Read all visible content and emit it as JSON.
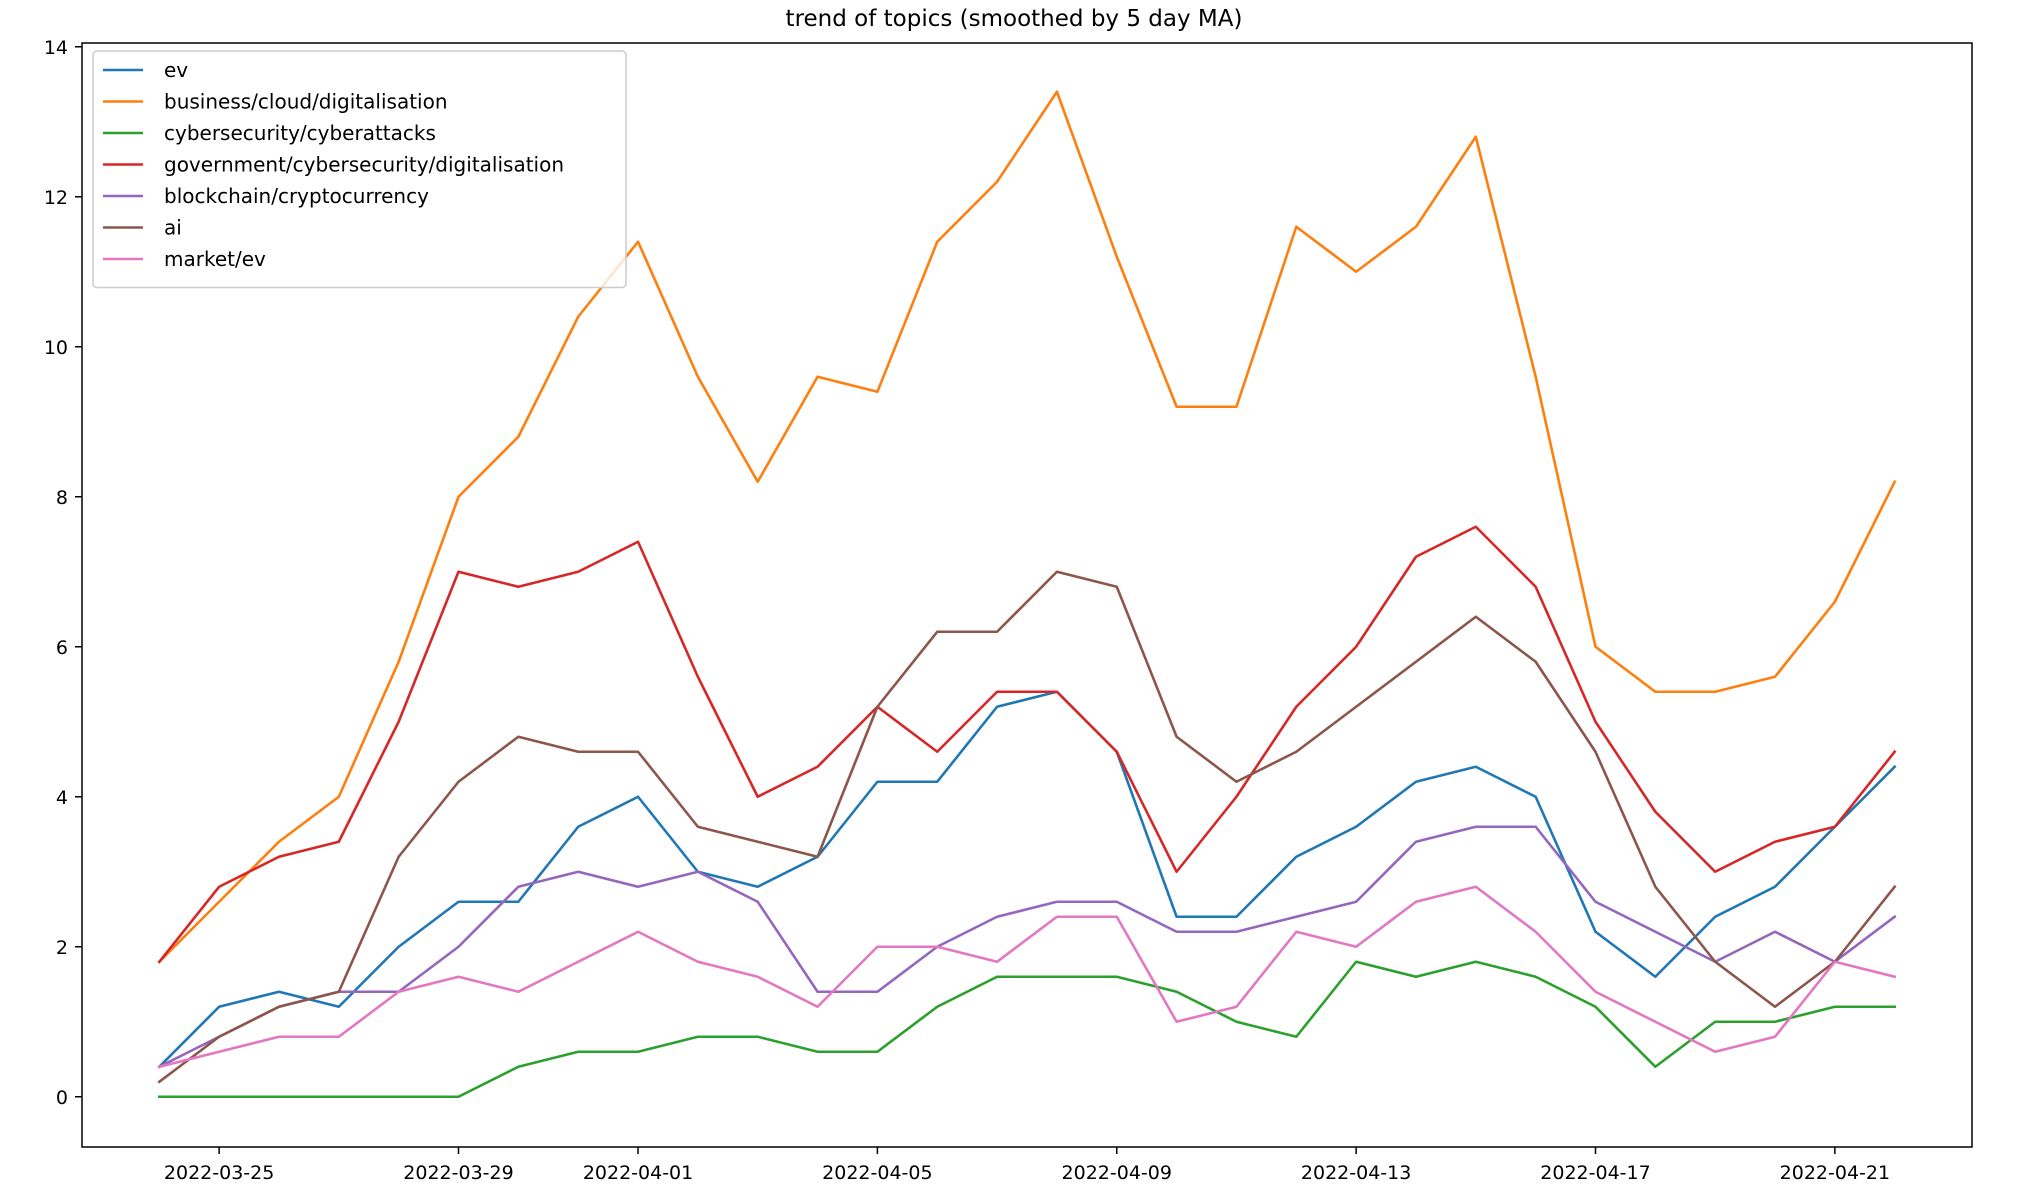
{
  "chart_data": {
    "type": "line",
    "title": "trend of topics (smoothed by 5 day MA)",
    "xlabel": "",
    "ylabel": "",
    "x": [
      "2022-03-24",
      "2022-03-25",
      "2022-03-26",
      "2022-03-27",
      "2022-03-28",
      "2022-03-29",
      "2022-03-30",
      "2022-03-31",
      "2022-04-01",
      "2022-04-02",
      "2022-04-03",
      "2022-04-04",
      "2022-04-05",
      "2022-04-06",
      "2022-04-07",
      "2022-04-08",
      "2022-04-09",
      "2022-04-10",
      "2022-04-11",
      "2022-04-12",
      "2022-04-13",
      "2022-04-14",
      "2022-04-15",
      "2022-04-16",
      "2022-04-17",
      "2022-04-18",
      "2022-04-19",
      "2022-04-20",
      "2022-04-21",
      "2022-04-22"
    ],
    "xlim": [
      "2022-03-22T17:00",
      "2022-04-23T07:00"
    ],
    "x_ticks": [
      "2022-03-25",
      "2022-03-29",
      "2022-04-01",
      "2022-04-05",
      "2022-04-09",
      "2022-04-13",
      "2022-04-17",
      "2022-04-21"
    ],
    "ylim": [
      -0.67,
      14.05
    ],
    "y_ticks": [
      0,
      2,
      4,
      6,
      8,
      10,
      12,
      14
    ],
    "grid": false,
    "legend_position": "top-left",
    "series": [
      {
        "name": "ev",
        "color": "#1f77b4",
        "values": [
          0.4,
          1.2,
          1.4,
          1.2,
          2.0,
          2.6,
          2.6,
          3.6,
          4.0,
          3.0,
          2.8,
          3.2,
          4.2,
          4.2,
          5.2,
          5.4,
          4.6,
          2.4,
          2.4,
          3.2,
          3.6,
          4.2,
          4.4,
          4.0,
          2.2,
          1.6,
          2.4,
          2.8,
          3.6,
          4.4
        ]
      },
      {
        "name": "business/cloud/digitalisation",
        "color": "#ff7f0e",
        "values": [
          1.8,
          2.6,
          3.4,
          4.0,
          5.8,
          8.0,
          8.8,
          10.4,
          11.4,
          9.6,
          8.2,
          9.6,
          9.4,
          11.4,
          12.2,
          13.4,
          11.2,
          9.2,
          9.2,
          11.6,
          11.0,
          11.6,
          12.8,
          9.6,
          6.0,
          5.4,
          5.4,
          5.6,
          6.6,
          8.2
        ]
      },
      {
        "name": "cybersecurity/cyberattacks",
        "color": "#2ca02c",
        "values": [
          0.0,
          0.0,
          0.0,
          0.0,
          0.0,
          0.0,
          0.4,
          0.6,
          0.6,
          0.8,
          0.8,
          0.6,
          0.6,
          1.2,
          1.6,
          1.6,
          1.6,
          1.4,
          1.0,
          0.8,
          1.8,
          1.6,
          1.8,
          1.6,
          1.2,
          0.4,
          1.0,
          1.0,
          1.2,
          1.2
        ]
      },
      {
        "name": "government/cybersecurity/digitalisation",
        "color": "#d62728",
        "values": [
          1.8,
          2.8,
          3.2,
          3.4,
          5.0,
          7.0,
          6.8,
          7.0,
          7.4,
          5.6,
          4.0,
          4.4,
          5.2,
          4.6,
          5.4,
          5.4,
          4.6,
          3.0,
          4.0,
          5.2,
          6.0,
          7.2,
          7.6,
          6.8,
          5.0,
          3.8,
          3.0,
          3.4,
          3.6,
          4.6
        ]
      },
      {
        "name": "blockchain/cryptocurrency",
        "color": "#9467bd",
        "values": [
          0.4,
          0.8,
          1.2,
          1.4,
          1.4,
          2.0,
          2.8,
          3.0,
          2.8,
          3.0,
          2.6,
          1.4,
          1.4,
          2.0,
          2.4,
          2.6,
          2.6,
          2.2,
          2.2,
          2.4,
          2.6,
          3.4,
          3.6,
          3.6,
          2.6,
          2.2,
          1.8,
          2.2,
          1.8,
          2.4
        ]
      },
      {
        "name": "ai",
        "color": "#8c564b",
        "values": [
          0.2,
          0.8,
          1.2,
          1.4,
          3.2,
          4.2,
          4.8,
          4.6,
          4.6,
          3.6,
          3.4,
          3.2,
          5.2,
          6.2,
          6.2,
          7.0,
          6.8,
          4.8,
          4.2,
          4.6,
          5.2,
          5.8,
          6.4,
          5.8,
          4.6,
          2.8,
          1.8,
          1.2,
          1.8,
          2.8
        ]
      },
      {
        "name": "market/ev",
        "color": "#e377c2",
        "values": [
          0.4,
          0.6,
          0.8,
          0.8,
          1.4,
          1.6,
          1.4,
          1.8,
          2.2,
          1.8,
          1.6,
          1.2,
          2.0,
          2.0,
          1.8,
          2.4,
          2.4,
          1.0,
          1.2,
          2.2,
          2.0,
          2.6,
          2.8,
          2.2,
          1.4,
          1.0,
          0.6,
          0.8,
          1.8,
          1.6
        ]
      }
    ]
  }
}
